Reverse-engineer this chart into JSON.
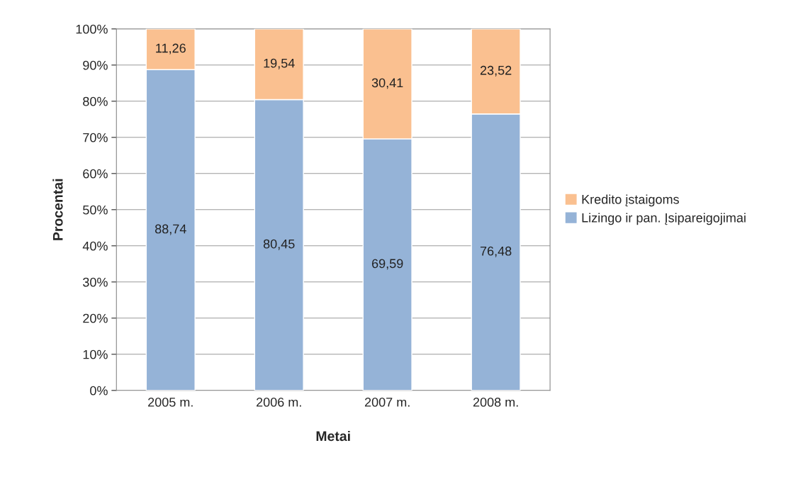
{
  "chart_data": {
    "type": "bar",
    "stacked": true,
    "xlabel": "Metai",
    "ylabel": "Procentai",
    "categories": [
      "2005 m.",
      "2006 m.",
      "2007 m.",
      "2008 m."
    ],
    "series": [
      {
        "name": "Lizingo ir pan. Įsipareigojimai",
        "color": "#95b3d7",
        "values": [
          88.74,
          80.45,
          69.59,
          76.48
        ],
        "value_labels": [
          "88,74",
          "80,45",
          "69,59",
          "76,48"
        ]
      },
      {
        "name": "Kredito įstaigoms",
        "color": "#fac090",
        "values": [
          11.26,
          19.54,
          30.41,
          23.52
        ],
        "value_labels": [
          "11,26",
          "19,54",
          "30,41",
          "23,52"
        ]
      }
    ],
    "ylim": [
      0,
      100
    ],
    "yticks": [
      {
        "value": 0,
        "label": "0%"
      },
      {
        "value": 10,
        "label": "10%"
      },
      {
        "value": 20,
        "label": "20%"
      },
      {
        "value": 30,
        "label": "30%"
      },
      {
        "value": 40,
        "label": "40%"
      },
      {
        "value": 50,
        "label": "50%"
      },
      {
        "value": 60,
        "label": "60%"
      },
      {
        "value": 70,
        "label": "70%"
      },
      {
        "value": 80,
        "label": "80%"
      },
      {
        "value": 90,
        "label": "90%"
      },
      {
        "value": 100,
        "label": "100%"
      }
    ],
    "grid": "y",
    "legend": "right"
  }
}
